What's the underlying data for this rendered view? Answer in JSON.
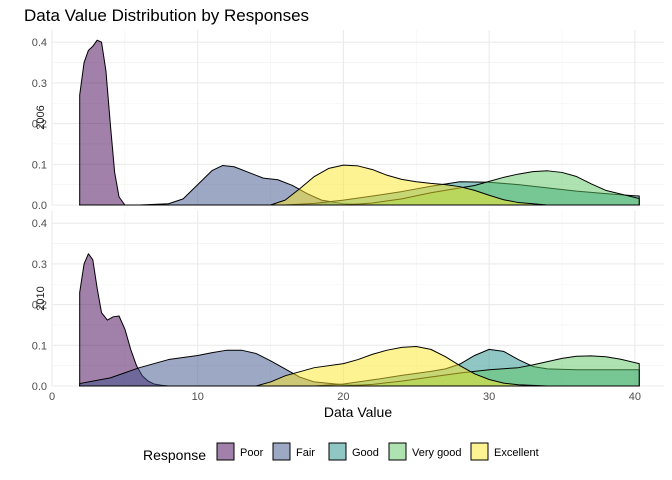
{
  "chart_data": {
    "type": "area",
    "subtype": "density",
    "title": "Data Value Distribution by Responses",
    "xlabel": "Data Value",
    "ylabel": "",
    "xlim": [
      0,
      42
    ],
    "ylim": [
      0,
      0.43
    ],
    "x_ticks": [
      0,
      10,
      20,
      30,
      40
    ],
    "y_ticks": [
      0.0,
      0.1,
      0.2,
      0.3,
      0.4
    ],
    "grid": true,
    "fill_alpha": 0.5,
    "legend": {
      "title": "Response",
      "position": "bottom",
      "entries": [
        "Poor",
        "Fair",
        "Good",
        "Very good",
        "Excellent"
      ]
    },
    "colors": {
      "Poor": "#440154",
      "Fair": "#3b528b",
      "Good": "#21908c",
      "Very good": "#5dc863",
      "Excellent": "#fde725"
    },
    "facets": [
      {
        "label": "2006",
        "series": [
          {
            "name": "Poor",
            "x": [
              1.9,
              2.2,
              2.5,
              2.8,
              3.1,
              3.4,
              3.7,
              4.0,
              4.3,
              4.6,
              5.0
            ],
            "y": [
              0.27,
              0.35,
              0.38,
              0.39,
              0.405,
              0.4,
              0.33,
              0.2,
              0.08,
              0.02,
              0.0
            ]
          },
          {
            "name": "Fair",
            "x": [
              1.9,
              6,
              8,
              9,
              10,
              11,
              11.7,
              12.5,
              13.5,
              14.5,
              15.5,
              16.5,
              17.5,
              18.5,
              20,
              22,
              24,
              40.3
            ],
            "y": [
              0.0,
              0.0,
              0.003,
              0.015,
              0.05,
              0.085,
              0.097,
              0.094,
              0.08,
              0.066,
              0.062,
              0.048,
              0.028,
              0.012,
              0.003,
              0.0,
              0.0,
              0.0
            ]
          },
          {
            "name": "Good",
            "x": [
              1.9,
              16,
              18,
              20,
              22,
              24,
              26,
              28,
              30,
              32,
              34,
              36,
              38,
              40.3
            ],
            "y": [
              0.0,
              0.0,
              0.004,
              0.012,
              0.022,
              0.033,
              0.046,
              0.057,
              0.056,
              0.05,
              0.042,
              0.034,
              0.028,
              0.022
            ]
          },
          {
            "name": "Very good",
            "x": [
              1.9,
              20,
              22,
              24,
              26,
              28,
              29,
              30,
              31,
              32,
              33,
              34,
              35,
              36,
              37,
              38,
              40.3
            ],
            "y": [
              0.0,
              0.0,
              0.005,
              0.015,
              0.03,
              0.042,
              0.048,
              0.058,
              0.068,
              0.076,
              0.082,
              0.084,
              0.08,
              0.07,
              0.052,
              0.036,
              0.016
            ]
          },
          {
            "name": "Excellent",
            "x": [
              1.9,
              15,
              16,
              17,
              18,
              19,
              20,
              21,
              22,
              23,
              24,
              25,
              26,
              27,
              28,
              29,
              30,
              31,
              32,
              34,
              40.3
            ],
            "y": [
              0.0,
              0.0,
              0.012,
              0.04,
              0.07,
              0.09,
              0.098,
              0.096,
              0.087,
              0.073,
              0.063,
              0.057,
              0.053,
              0.05,
              0.045,
              0.036,
              0.024,
              0.013,
              0.006,
              0.0,
              0.0
            ]
          }
        ]
      },
      {
        "label": "2010",
        "series": [
          {
            "name": "Poor",
            "x": [
              1.9,
              2.2,
              2.5,
              2.8,
              3.1,
              3.4,
              3.8,
              4.2,
              4.6,
              5.0,
              5.4,
              5.8,
              6.2,
              6.6,
              7.0,
              7.5,
              8.0
            ],
            "y": [
              0.23,
              0.3,
              0.325,
              0.31,
              0.24,
              0.18,
              0.162,
              0.17,
              0.172,
              0.14,
              0.09,
              0.05,
              0.025,
              0.012,
              0.005,
              0.002,
              0.0
            ]
          },
          {
            "name": "Fair",
            "x": [
              1.9,
              4,
              6,
              8,
              10,
              11,
              12,
              13,
              14,
              15,
              16,
              17,
              18,
              20,
              22,
              24,
              40.3
            ],
            "y": [
              0.006,
              0.02,
              0.045,
              0.065,
              0.075,
              0.082,
              0.088,
              0.088,
              0.08,
              0.062,
              0.042,
              0.022,
              0.01,
              0.003,
              0.0,
              0.0,
              0.0
            ]
          },
          {
            "name": "Good",
            "x": [
              1.9,
              18,
              20,
              22,
              24,
              26,
              27,
              28,
              29,
              30,
              31,
              32,
              33,
              34,
              36,
              38,
              40.3
            ],
            "y": [
              0.0,
              0.0,
              0.005,
              0.015,
              0.026,
              0.036,
              0.042,
              0.054,
              0.075,
              0.09,
              0.085,
              0.065,
              0.048,
              0.042,
              0.04,
              0.04,
              0.04
            ]
          },
          {
            "name": "Very good",
            "x": [
              1.9,
              20,
              22,
              24,
              26,
              28,
              30,
              32,
              33,
              34,
              35,
              36,
              37,
              38,
              39,
              40.3
            ],
            "y": [
              0.0,
              0.0,
              0.004,
              0.012,
              0.022,
              0.032,
              0.04,
              0.045,
              0.052,
              0.06,
              0.068,
              0.073,
              0.074,
              0.072,
              0.066,
              0.055
            ]
          },
          {
            "name": "Excellent",
            "x": [
              1.9,
              14,
              15,
              16,
              18,
              20,
              21,
              22,
              23,
              24,
              25,
              26,
              27,
              28,
              29,
              30,
              31,
              32,
              34,
              40.3
            ],
            "y": [
              0.0,
              0.0,
              0.01,
              0.025,
              0.045,
              0.055,
              0.065,
              0.078,
              0.088,
              0.095,
              0.097,
              0.09,
              0.072,
              0.05,
              0.03,
              0.016,
              0.007,
              0.003,
              0.0,
              0.0
            ]
          }
        ]
      }
    ]
  }
}
